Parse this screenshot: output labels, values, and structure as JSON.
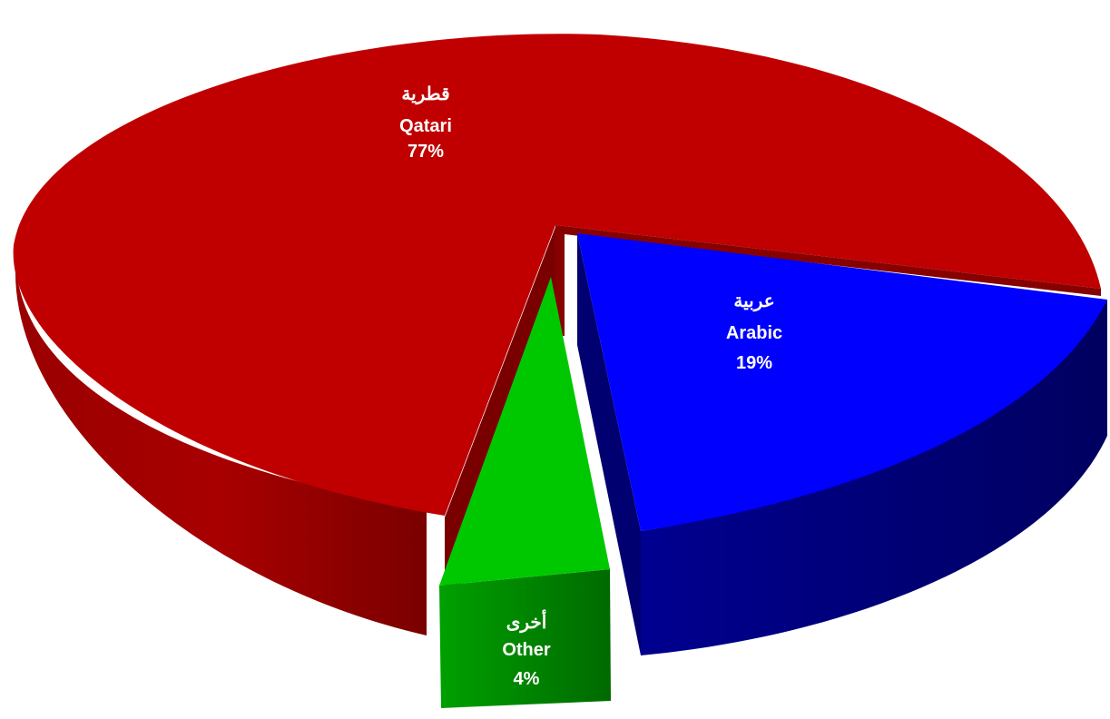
{
  "chart_data": {
    "type": "pie",
    "style": "3d-exploded",
    "slices": [
      {
        "label_ar": "قطرية",
        "label_en": "Qatari",
        "value": 77,
        "value_label": "77%",
        "color": "#c00000"
      },
      {
        "label_ar": "عربية",
        "label_en": "Arabic",
        "value": 19,
        "value_label": "19%",
        "color": "#0000ff"
      },
      {
        "label_ar": "أخرى",
        "label_en": "Other",
        "value": 4,
        "value_label": "4%",
        "color": "#00c800"
      }
    ],
    "legend": "none"
  }
}
